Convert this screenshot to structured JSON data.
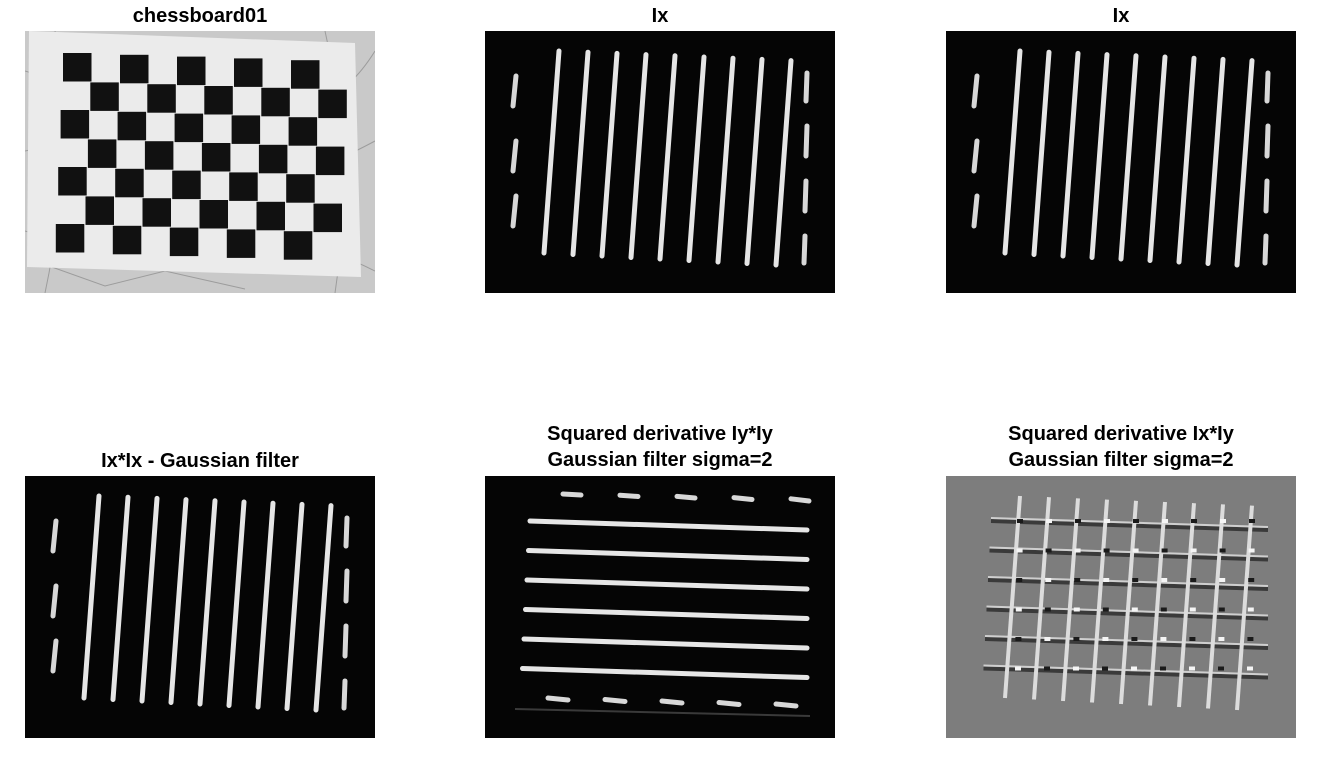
{
  "figure": {
    "background": "#ffffff",
    "panels": [
      {
        "id": "chessboard",
        "title_lines": [
          "chessboard01"
        ],
        "kind": "chessboard"
      },
      {
        "id": "ix-1",
        "title_lines": [
          "Ix"
        ],
        "kind": "vertical"
      },
      {
        "id": "ix-2",
        "title_lines": [
          "Ix"
        ],
        "kind": "vertical"
      },
      {
        "id": "ixix-gauss",
        "title_lines": [
          "Ix*Ix - Gaussian filter"
        ],
        "kind": "vertical"
      },
      {
        "id": "iyiy-gauss",
        "title_lines": [
          "Squared derivative Iy*Iy",
          "Gaussian filter sigma=2"
        ],
        "kind": "horizontal"
      },
      {
        "id": "ixiy-gauss",
        "title_lines": [
          "Squared derivative Ix*Iy",
          "Gaussian filter sigma=2"
        ],
        "kind": "grid"
      }
    ]
  }
}
